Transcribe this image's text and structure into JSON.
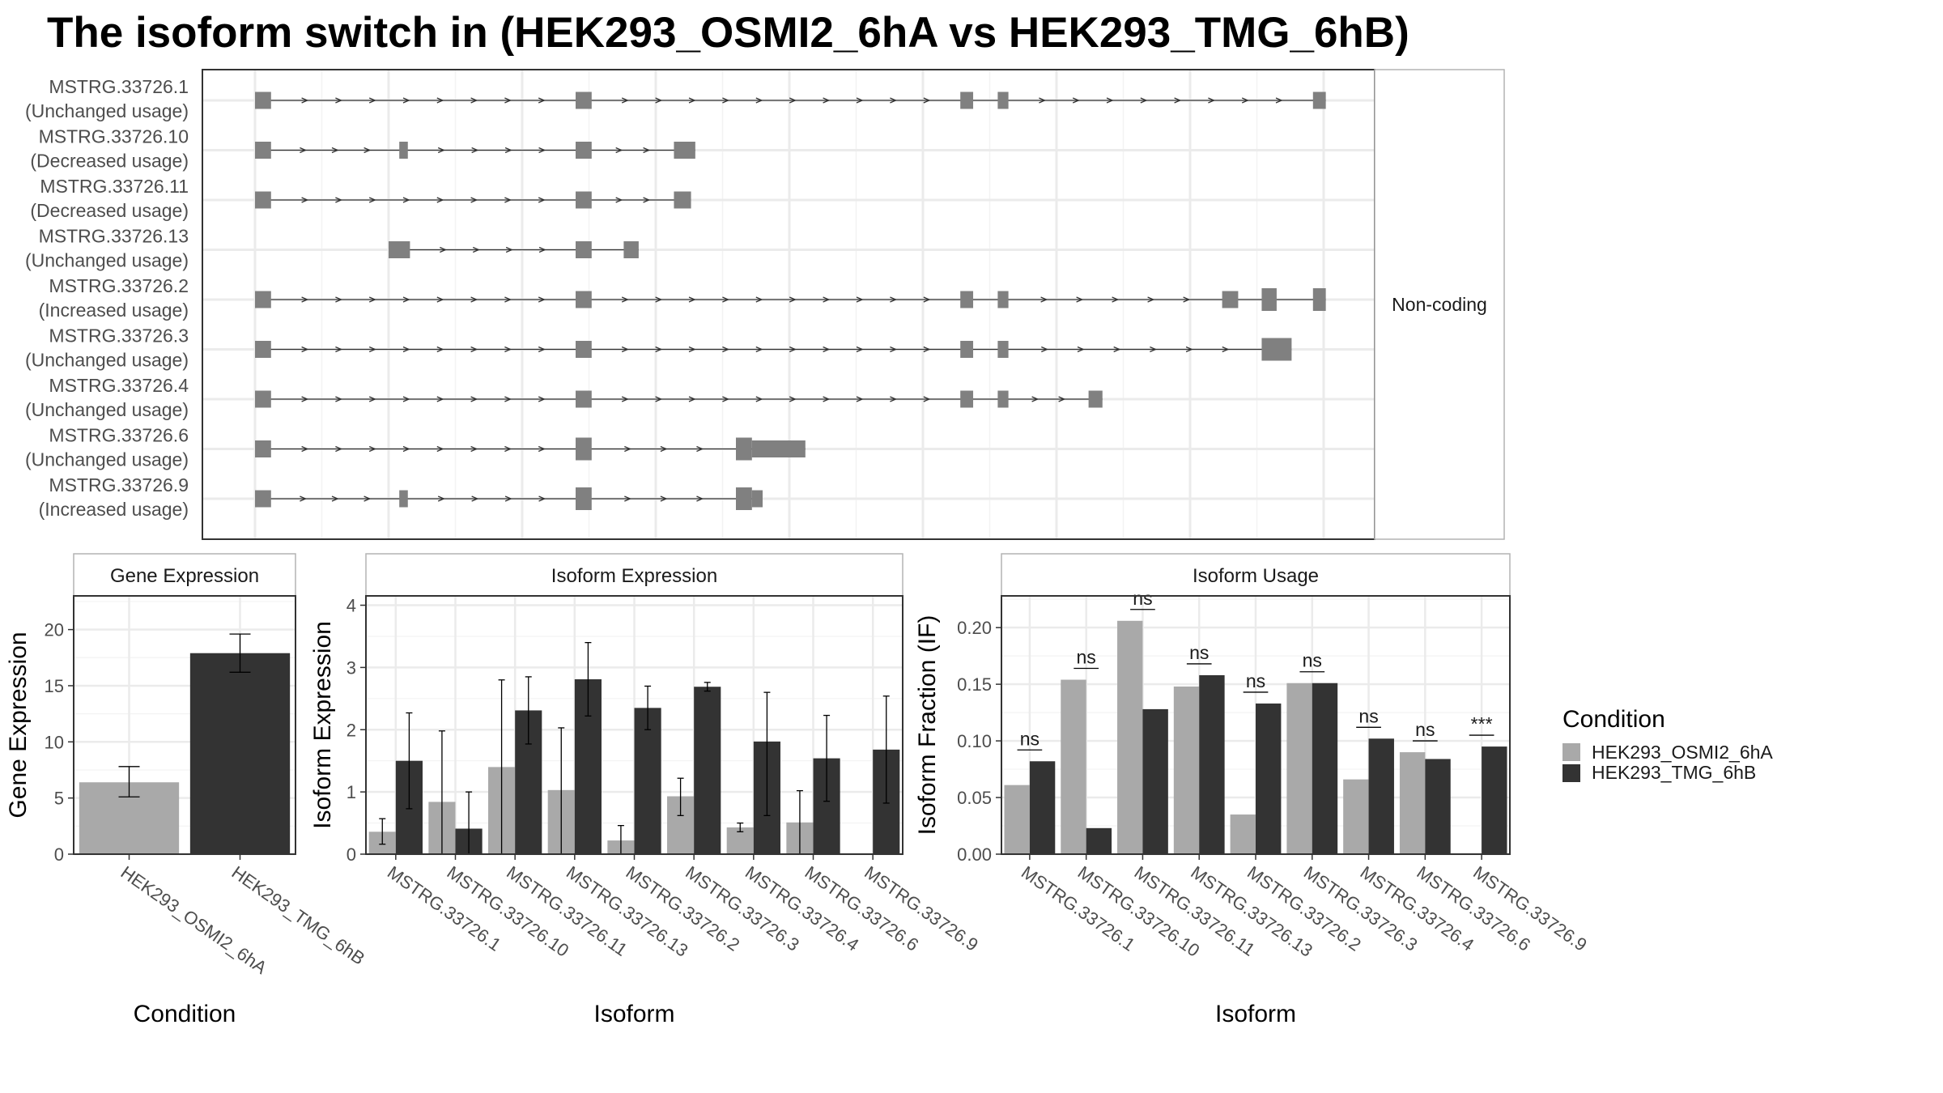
{
  "title": "The isoform switch in  (HEK293_OSMI2_6hA vs HEK293_TMG_6hB)",
  "colors": {
    "exon": "#808080",
    "condA": "#a9a9a9",
    "condB": "#333333",
    "grid": "#ebebeb",
    "panel_border": "#333333"
  },
  "transcript_panel": {
    "side_label": "Non-coding",
    "transcripts": [
      {
        "id": "MSTRG.33726.1",
        "usage": "(Unchanged usage)",
        "exons": [
          [
            0,
            1.5
          ],
          [
            30,
            31.5
          ],
          [
            66,
            67.2
          ],
          [
            69.5,
            70.5
          ],
          [
            99,
            100.2
          ]
        ]
      },
      {
        "id": "MSTRG.33726.10",
        "usage": "(Decreased usage)",
        "exons": [
          [
            0,
            1.5
          ],
          [
            13.5,
            14.3
          ],
          [
            30,
            31.5
          ],
          [
            39.2,
            41.2
          ]
        ]
      },
      {
        "id": "MSTRG.33726.11",
        "usage": "(Decreased usage)",
        "exons": [
          [
            0,
            1.5
          ],
          [
            30,
            31.5
          ],
          [
            39.2,
            40.8
          ]
        ]
      },
      {
        "id": "MSTRG.33726.13",
        "usage": "(Unchanged usage)",
        "exons": [
          [
            12.5,
            14.5
          ],
          [
            30,
            31.5
          ],
          [
            34.5,
            35.9
          ]
        ]
      },
      {
        "id": "MSTRG.33726.2",
        "usage": "(Increased usage)",
        "exons": [
          [
            0,
            1.5
          ],
          [
            30,
            31.5
          ],
          [
            66,
            67.2
          ],
          [
            69.5,
            70.5
          ],
          [
            90.5,
            92
          ],
          [
            94.2,
            95.6,
            "tall"
          ],
          [
            99,
            100.2,
            "tall"
          ]
        ]
      },
      {
        "id": "MSTRG.33726.3",
        "usage": "(Unchanged usage)",
        "exons": [
          [
            0,
            1.5
          ],
          [
            30,
            31.5
          ],
          [
            66,
            67.2
          ],
          [
            69.5,
            70.5
          ],
          [
            94.2,
            97,
            "tall"
          ]
        ]
      },
      {
        "id": "MSTRG.33726.4",
        "usage": "(Unchanged usage)",
        "exons": [
          [
            0,
            1.5
          ],
          [
            30,
            31.5
          ],
          [
            66,
            67.2
          ],
          [
            69.5,
            70.5
          ],
          [
            78,
            79.3
          ]
        ]
      },
      {
        "id": "MSTRG.33726.6",
        "usage": "(Unchanged usage)",
        "exons": [
          [
            0,
            1.5
          ],
          [
            30,
            31.5,
            "tall"
          ],
          [
            45,
            46.5,
            "tall"
          ],
          [
            46.5,
            51.5
          ]
        ]
      },
      {
        "id": "MSTRG.33726.9",
        "usage": "(Increased usage)",
        "exons": [
          [
            0,
            1.5
          ],
          [
            13.5,
            14.3
          ],
          [
            30,
            31.5,
            "tall"
          ],
          [
            45,
            46.5,
            "tall"
          ],
          [
            46.5,
            47.5
          ]
        ]
      }
    ]
  },
  "chart_data": [
    {
      "type": "bar",
      "title": "Gene Expression",
      "xlabel": "Condition",
      "ylabel": "Gene Expression",
      "categories": [
        "HEK293_OSMI2_6hA",
        "HEK293_TMG_6hB"
      ],
      "ylim": [
        0,
        23
      ],
      "yticks": [
        0,
        5,
        10,
        15,
        20
      ],
      "series": [
        {
          "name": "HEK293_OSMI2_6hA",
          "values": [
            6.4,
            null
          ],
          "err_low": [
            5.1,
            null
          ],
          "err_high": [
            7.8,
            null
          ]
        },
        {
          "name": "HEK293_TMG_6hB",
          "values": [
            null,
            17.9
          ],
          "err_low": [
            null,
            16.2
          ],
          "err_high": [
            null,
            19.6
          ]
        }
      ],
      "grid": true
    },
    {
      "type": "bar",
      "title": "Isoform Expression",
      "xlabel": "Isoform",
      "ylabel": "Isoform Expression",
      "categories": [
        "MSTRG.33726.1",
        "MSTRG.33726.10",
        "MSTRG.33726.11",
        "MSTRG.33726.13",
        "MSTRG.33726.2",
        "MSTRG.33726.3",
        "MSTRG.33726.4",
        "MSTRG.33726.6",
        "MSTRG.33726.9"
      ],
      "ylim": [
        0,
        4.15
      ],
      "yticks": [
        0,
        1,
        2,
        3,
        4
      ],
      "series": [
        {
          "name": "HEK293_OSMI2_6hA",
          "values": [
            0.36,
            0.84,
            1.4,
            1.03,
            0.22,
            0.93,
            0.43,
            0.51,
            0.0
          ],
          "err_low": [
            0.16,
            0.0,
            0.0,
            0.0,
            0.0,
            0.62,
            0.36,
            0.0,
            null
          ],
          "err_high": [
            0.57,
            1.98,
            2.8,
            2.03,
            0.46,
            1.22,
            0.5,
            1.02,
            null
          ]
        },
        {
          "name": "HEK293_TMG_6hB",
          "values": [
            1.5,
            0.41,
            2.31,
            2.81,
            2.35,
            2.69,
            1.81,
            1.54,
            1.68
          ],
          "err_low": [
            0.73,
            0.0,
            1.77,
            2.22,
            2.0,
            2.62,
            0.62,
            0.85,
            0.82
          ],
          "err_high": [
            2.27,
            1.0,
            2.85,
            3.4,
            2.7,
            2.76,
            2.6,
            2.23,
            2.54
          ]
        }
      ],
      "grid": true
    },
    {
      "type": "bar",
      "title": "Isoform Usage",
      "xlabel": "Isoform",
      "ylabel": "Isoform Fraction (IF)",
      "categories": [
        "MSTRG.33726.1",
        "MSTRG.33726.10",
        "MSTRG.33726.11",
        "MSTRG.33726.13",
        "MSTRG.33726.2",
        "MSTRG.33726.3",
        "MSTRG.33726.4",
        "MSTRG.33726.6",
        "MSTRG.33726.9"
      ],
      "ylim": [
        0,
        0.228
      ],
      "yticks": [
        0.0,
        0.05,
        0.1,
        0.15,
        0.2
      ],
      "ytick_labels": [
        "0.00",
        "0.05",
        "0.10",
        "0.15",
        "0.20"
      ],
      "series": [
        {
          "name": "HEK293_OSMI2_6hA",
          "values": [
            0.061,
            0.154,
            0.206,
            0.148,
            0.035,
            0.151,
            0.066,
            0.09,
            0.0
          ]
        },
        {
          "name": "HEK293_TMG_6hB",
          "values": [
            0.082,
            0.023,
            0.128,
            0.158,
            0.133,
            0.151,
            0.102,
            0.084,
            0.095
          ]
        }
      ],
      "significance": [
        "ns",
        "ns",
        "ns",
        "ns",
        "ns",
        "ns",
        "ns",
        "ns",
        "***"
      ],
      "grid": true
    }
  ],
  "legend": {
    "title": "Condition",
    "items": [
      "HEK293_OSMI2_6hA",
      "HEK293_TMG_6hB"
    ]
  }
}
